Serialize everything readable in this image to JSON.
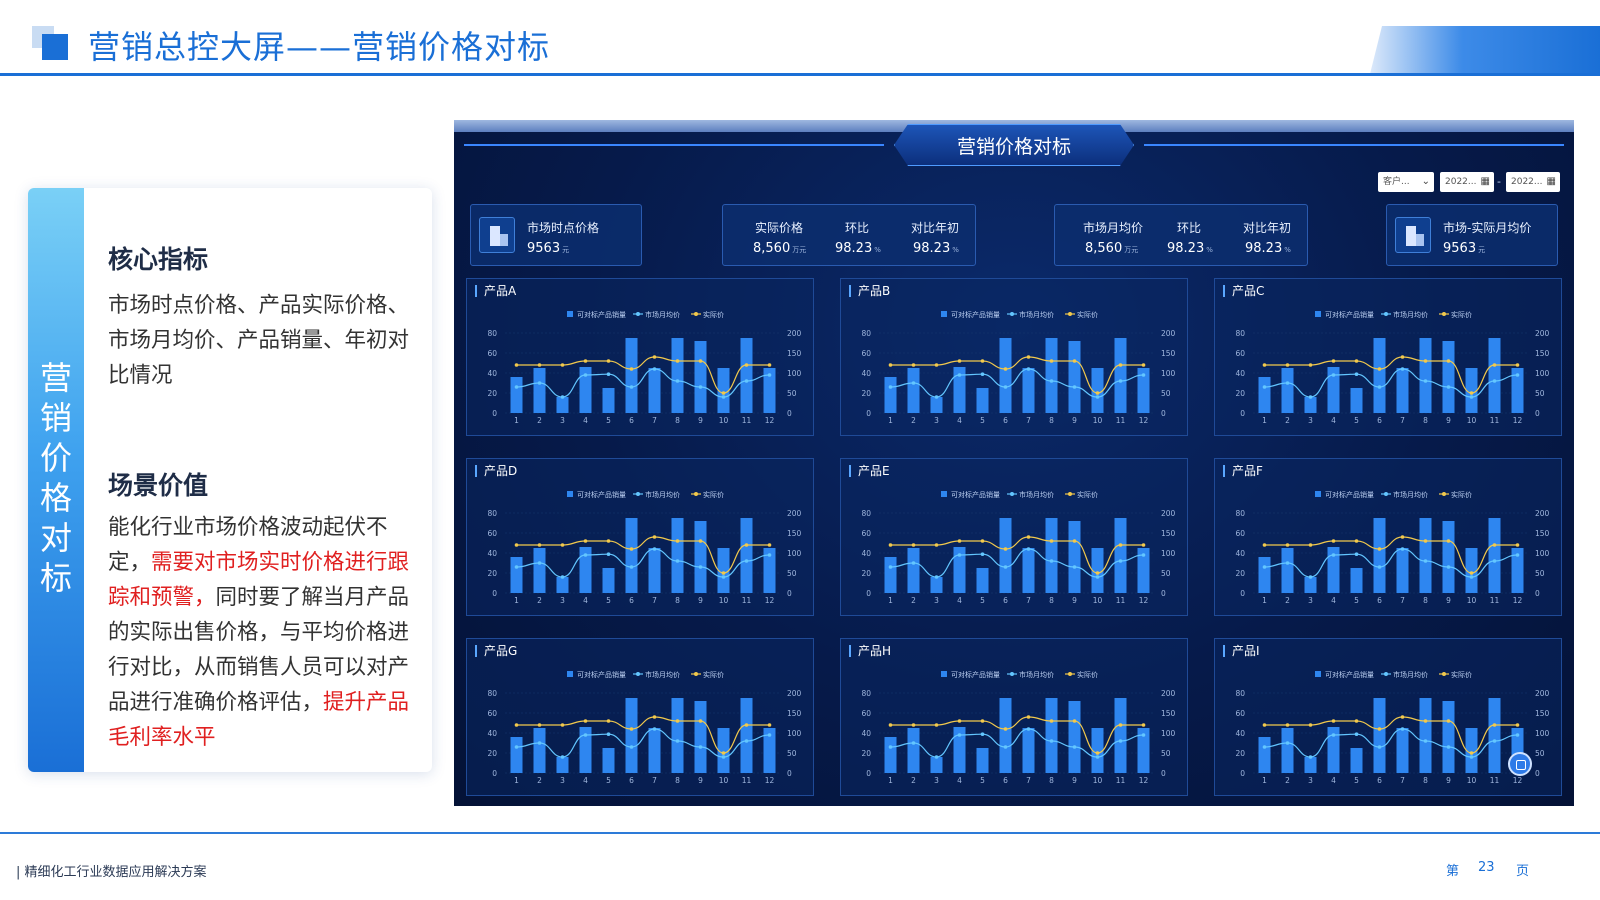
{
  "header": {
    "title": "营销总控大屏——营销价格对标"
  },
  "left_card": {
    "vertical_title": [
      "营",
      "销",
      "价",
      "格",
      "对",
      "标"
    ],
    "section1_title": "核心指标",
    "section1_body": "市场时点价格、产品实际价格、市场月均价、产品销量、年初对比情况",
    "section2_title": "场景价值",
    "section2_text1": "能化行业市场价格波动起伏不定，",
    "section2_red1": "需要对市场实时价格进行跟踪和预警，",
    "section2_text2": "同时要了解当月产品的实际出售价格，与平均价格进行对比，从而销售人员可以对产品进行准确价格评估，",
    "section2_red2": "提升产品毛利率水平"
  },
  "dashboard": {
    "title": "营销价格对标",
    "controls": {
      "customer": "客户...",
      "date_from": "2022...",
      "date_to": "2022...",
      "range_sep": "-"
    },
    "kpi1": {
      "label": "市场时点价格",
      "value": "9563",
      "unit": "元"
    },
    "kpi2": {
      "l1": "实际价格",
      "v1": "8,560",
      "u1": "万元",
      "l2": "环比",
      "v2": "98.23",
      "u2": "%",
      "l3": "对比年初",
      "v3": "98.23",
      "u3": "%"
    },
    "kpi3": {
      "l1": "市场月均价",
      "v1": "8,560",
      "u1": "万元",
      "l2": "环比",
      "v2": "98.23",
      "u2": "%",
      "l3": "对比年初",
      "v3": "98.23",
      "u3": "%"
    },
    "kpi4": {
      "label": "市场-实际月均价",
      "value": "9563",
      "unit": "元"
    }
  },
  "chart_data": [
    {
      "type": "bar",
      "title": "产品A",
      "legend": [
        "可对标产品销量",
        "市场月均价",
        "实际价"
      ],
      "categories": [
        "1",
        "2",
        "3",
        "4",
        "5",
        "6",
        "7",
        "8",
        "9",
        "10",
        "11",
        "12"
      ],
      "series": [
        {
          "name": "可对标产品销量",
          "values": [
            36,
            45,
            16,
            46,
            25,
            75,
            45,
            75,
            72,
            45,
            75,
            45
          ]
        },
        {
          "name": "市场月均价",
          "values": [
            65,
            75,
            40,
            95,
            97,
            65,
            110,
            80,
            65,
            40,
            80,
            95
          ]
        },
        {
          "name": "实际价",
          "values": [
            120,
            120,
            120,
            130,
            130,
            110,
            140,
            130,
            130,
            50,
            120,
            120
          ]
        }
      ],
      "y_left_ticks": [
        "80",
        "60",
        "40",
        "20",
        "0"
      ],
      "y_right_ticks": [
        "200",
        "150",
        "100",
        "50",
        "0"
      ],
      "ylim_left": [
        0,
        80
      ],
      "ylim_right": [
        0,
        200
      ],
      "colors": [
        "#2e86f0",
        "#63c6ff",
        "#f2c94c"
      ]
    },
    {
      "type": "bar",
      "title": "产品B",
      "legend": [
        "可对标产品销量",
        "市场月均价",
        "实际价"
      ],
      "categories": [
        "1",
        "2",
        "3",
        "4",
        "5",
        "6",
        "7",
        "8",
        "9",
        "10",
        "11",
        "12"
      ],
      "series": [
        {
          "name": "可对标产品销量",
          "values": [
            36,
            45,
            16,
            46,
            25,
            75,
            45,
            75,
            72,
            45,
            75,
            45
          ]
        },
        {
          "name": "市场月均价",
          "values": [
            65,
            75,
            40,
            95,
            97,
            65,
            110,
            80,
            65,
            40,
            80,
            95
          ]
        },
        {
          "name": "实际价",
          "values": [
            120,
            120,
            120,
            130,
            130,
            110,
            140,
            130,
            130,
            50,
            120,
            120
          ]
        }
      ],
      "y_left_ticks": [
        "80",
        "60",
        "40",
        "20",
        "0"
      ],
      "y_right_ticks": [
        "200",
        "150",
        "100",
        "50",
        "0"
      ],
      "ylim_left": [
        0,
        80
      ],
      "ylim_right": [
        0,
        200
      ],
      "colors": [
        "#2e86f0",
        "#63c6ff",
        "#f2c94c"
      ]
    },
    {
      "type": "bar",
      "title": "产品C",
      "legend": [
        "可对标产品销量",
        "市场月均价",
        "实际价"
      ],
      "categories": [
        "1",
        "2",
        "3",
        "4",
        "5",
        "6",
        "7",
        "8",
        "9",
        "10",
        "11",
        "12"
      ],
      "series": [
        {
          "name": "可对标产品销量",
          "values": [
            36,
            45,
            16,
            46,
            25,
            75,
            45,
            75,
            72,
            45,
            75,
            45
          ]
        },
        {
          "name": "市场月均价",
          "values": [
            65,
            75,
            40,
            95,
            97,
            65,
            110,
            80,
            65,
            40,
            80,
            95
          ]
        },
        {
          "name": "实际价",
          "values": [
            120,
            120,
            120,
            130,
            130,
            110,
            140,
            130,
            130,
            50,
            120,
            120
          ]
        }
      ],
      "y_left_ticks": [
        "80",
        "60",
        "40",
        "20",
        "0"
      ],
      "y_right_ticks": [
        "200",
        "150",
        "100",
        "50",
        "0"
      ],
      "ylim_left": [
        0,
        80
      ],
      "ylim_right": [
        0,
        200
      ],
      "colors": [
        "#2e86f0",
        "#63c6ff",
        "#f2c94c"
      ]
    },
    {
      "type": "bar",
      "title": "产品D",
      "legend": [
        "可对标产品销量",
        "市场月均价",
        "实际价"
      ],
      "categories": [
        "1",
        "2",
        "3",
        "4",
        "5",
        "6",
        "7",
        "8",
        "9",
        "10",
        "11",
        "12"
      ],
      "series": [
        {
          "name": "可对标产品销量",
          "values": [
            36,
            45,
            16,
            46,
            25,
            75,
            45,
            75,
            72,
            45,
            75,
            45
          ]
        },
        {
          "name": "市场月均价",
          "values": [
            65,
            75,
            40,
            95,
            97,
            65,
            110,
            80,
            65,
            40,
            80,
            95
          ]
        },
        {
          "name": "实际价",
          "values": [
            120,
            120,
            120,
            130,
            130,
            110,
            140,
            130,
            130,
            50,
            120,
            120
          ]
        }
      ],
      "y_left_ticks": [
        "80",
        "60",
        "40",
        "20",
        "0"
      ],
      "y_right_ticks": [
        "200",
        "150",
        "100",
        "50",
        "0"
      ],
      "ylim_left": [
        0,
        80
      ],
      "ylim_right": [
        0,
        200
      ],
      "colors": [
        "#2e86f0",
        "#63c6ff",
        "#f2c94c"
      ]
    },
    {
      "type": "bar",
      "title": "产品E",
      "legend": [
        "可对标产品销量",
        "市场月均价",
        "实际价"
      ],
      "categories": [
        "1",
        "2",
        "3",
        "4",
        "5",
        "6",
        "7",
        "8",
        "9",
        "10",
        "11",
        "12"
      ],
      "series": [
        {
          "name": "可对标产品销量",
          "values": [
            36,
            45,
            16,
            46,
            25,
            75,
            45,
            75,
            72,
            45,
            75,
            45
          ]
        },
        {
          "name": "市场月均价",
          "values": [
            65,
            75,
            40,
            95,
            97,
            65,
            110,
            80,
            65,
            40,
            80,
            95
          ]
        },
        {
          "name": "实际价",
          "values": [
            120,
            120,
            120,
            130,
            130,
            110,
            140,
            130,
            130,
            50,
            120,
            120
          ]
        }
      ],
      "y_left_ticks": [
        "80",
        "60",
        "40",
        "20",
        "0"
      ],
      "y_right_ticks": [
        "200",
        "150",
        "100",
        "50",
        "0"
      ],
      "ylim_left": [
        0,
        80
      ],
      "ylim_right": [
        0,
        200
      ],
      "colors": [
        "#2e86f0",
        "#63c6ff",
        "#f2c94c"
      ]
    },
    {
      "type": "bar",
      "title": "产品F",
      "legend": [
        "可对标产品销量",
        "市场月均价",
        "实际价"
      ],
      "categories": [
        "1",
        "2",
        "3",
        "4",
        "5",
        "6",
        "7",
        "8",
        "9",
        "10",
        "11",
        "12"
      ],
      "series": [
        {
          "name": "可对标产品销量",
          "values": [
            36,
            45,
            16,
            46,
            25,
            75,
            45,
            75,
            72,
            45,
            75,
            45
          ]
        },
        {
          "name": "市场月均价",
          "values": [
            65,
            75,
            40,
            95,
            97,
            65,
            110,
            80,
            65,
            40,
            80,
            95
          ]
        },
        {
          "name": "实际价",
          "values": [
            120,
            120,
            120,
            130,
            130,
            110,
            140,
            130,
            130,
            50,
            120,
            120
          ]
        }
      ],
      "y_left_ticks": [
        "80",
        "60",
        "40",
        "20",
        "0"
      ],
      "y_right_ticks": [
        "200",
        "150",
        "100",
        "50",
        "0"
      ],
      "ylim_left": [
        0,
        80
      ],
      "ylim_right": [
        0,
        200
      ],
      "colors": [
        "#2e86f0",
        "#63c6ff",
        "#f2c94c"
      ]
    },
    {
      "type": "bar",
      "title": "产品G",
      "legend": [
        "可对标产品销量",
        "市场月均价",
        "实际价"
      ],
      "categories": [
        "1",
        "2",
        "3",
        "4",
        "5",
        "6",
        "7",
        "8",
        "9",
        "10",
        "11",
        "12"
      ],
      "series": [
        {
          "name": "可对标产品销量",
          "values": [
            36,
            45,
            16,
            46,
            25,
            75,
            45,
            75,
            72,
            45,
            75,
            45
          ]
        },
        {
          "name": "市场月均价",
          "values": [
            65,
            75,
            40,
            95,
            97,
            65,
            110,
            80,
            65,
            40,
            80,
            95
          ]
        },
        {
          "name": "实际价",
          "values": [
            120,
            120,
            120,
            130,
            130,
            110,
            140,
            130,
            130,
            50,
            120,
            120
          ]
        }
      ],
      "y_left_ticks": [
        "80",
        "60",
        "40",
        "20",
        "0"
      ],
      "y_right_ticks": [
        "200",
        "150",
        "100",
        "50",
        "0"
      ],
      "ylim_left": [
        0,
        80
      ],
      "ylim_right": [
        0,
        200
      ],
      "colors": [
        "#2e86f0",
        "#63c6ff",
        "#f2c94c"
      ]
    },
    {
      "type": "bar",
      "title": "产品H",
      "legend": [
        "可对标产品销量",
        "市场月均价",
        "实际价"
      ],
      "categories": [
        "1",
        "2",
        "3",
        "4",
        "5",
        "6",
        "7",
        "8",
        "9",
        "10",
        "11",
        "12"
      ],
      "series": [
        {
          "name": "可对标产品销量",
          "values": [
            36,
            45,
            16,
            46,
            25,
            75,
            45,
            75,
            72,
            45,
            75,
            45
          ]
        },
        {
          "name": "市场月均价",
          "values": [
            65,
            75,
            40,
            95,
            97,
            65,
            110,
            80,
            65,
            40,
            80,
            95
          ]
        },
        {
          "name": "实际价",
          "values": [
            120,
            120,
            120,
            130,
            130,
            110,
            140,
            130,
            130,
            50,
            120,
            120
          ]
        }
      ],
      "y_left_ticks": [
        "80",
        "60",
        "40",
        "20",
        "0"
      ],
      "y_right_ticks": [
        "200",
        "150",
        "100",
        "50",
        "0"
      ],
      "ylim_left": [
        0,
        80
      ],
      "ylim_right": [
        0,
        200
      ],
      "colors": [
        "#2e86f0",
        "#63c6ff",
        "#f2c94c"
      ]
    },
    {
      "type": "bar",
      "title": "产品I",
      "legend": [
        "可对标产品销量",
        "市场月均价",
        "实际价"
      ],
      "categories": [
        "1",
        "2",
        "3",
        "4",
        "5",
        "6",
        "7",
        "8",
        "9",
        "10",
        "11",
        "12"
      ],
      "series": [
        {
          "name": "可对标产品销量",
          "values": [
            36,
            45,
            16,
            46,
            25,
            75,
            45,
            75,
            72,
            45,
            75,
            45
          ]
        },
        {
          "name": "市场月均价",
          "values": [
            65,
            75,
            40,
            95,
            97,
            65,
            110,
            80,
            65,
            40,
            80,
            95
          ]
        },
        {
          "name": "实际价",
          "values": [
            120,
            120,
            120,
            130,
            130,
            110,
            140,
            130,
            130,
            50,
            120,
            120
          ]
        }
      ],
      "y_left_ticks": [
        "80",
        "60",
        "40",
        "20",
        "0"
      ],
      "y_right_ticks": [
        "200",
        "150",
        "100",
        "50",
        "0"
      ],
      "ylim_left": [
        0,
        80
      ],
      "ylim_right": [
        0,
        200
      ],
      "colors": [
        "#2e86f0",
        "#63c6ff",
        "#f2c94c"
      ]
    }
  ],
  "footer": {
    "text": "| 精细化工行业数据应用解决方案",
    "page_prefix": "第",
    "page_number": "23",
    "page_suffix": "页"
  }
}
